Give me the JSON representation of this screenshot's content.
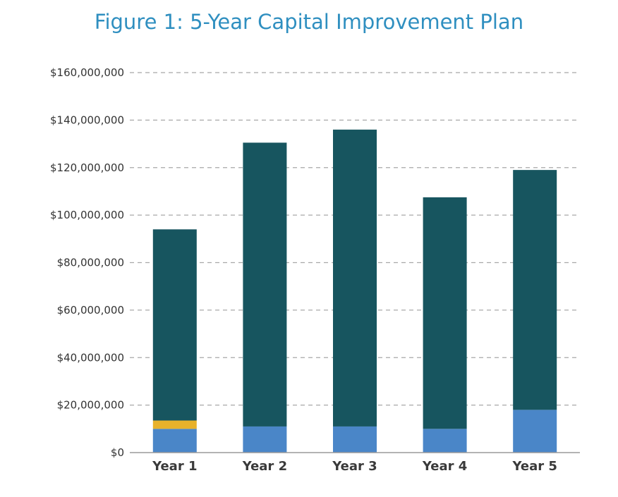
{
  "chart_data": {
    "type": "bar",
    "stacked": true,
    "title": "Figure 1: 5-Year Capital Improvement Plan",
    "categories": [
      "Year 1",
      "Year 2",
      "Year 3",
      "Year 4",
      "Year 5"
    ],
    "series": [
      {
        "color": "#4a86c8",
        "values": [
          10000000,
          11000000,
          11000000,
          10000000,
          18000000
        ]
      },
      {
        "color": "#e8b22b",
        "values": [
          3500000,
          0,
          0,
          0,
          0
        ]
      },
      {
        "color": "#17555f",
        "values": [
          80500000,
          119500000,
          125000000,
          97500000,
          101000000
        ]
      }
    ],
    "yticks": [
      "$0",
      "$20,000,000",
      "$40,000,000",
      "$60,000,000",
      "$80,000,000",
      "$100,000,000",
      "$120,000,000",
      "$140,000,000",
      "$160,000,000"
    ],
    "ytick_values": [
      0,
      20000000,
      40000000,
      60000000,
      80000000,
      100000000,
      120000000,
      140000000,
      160000000
    ],
    "ylim": [
      0,
      160000000
    ],
    "grid": true,
    "grid_style": "dashed"
  }
}
